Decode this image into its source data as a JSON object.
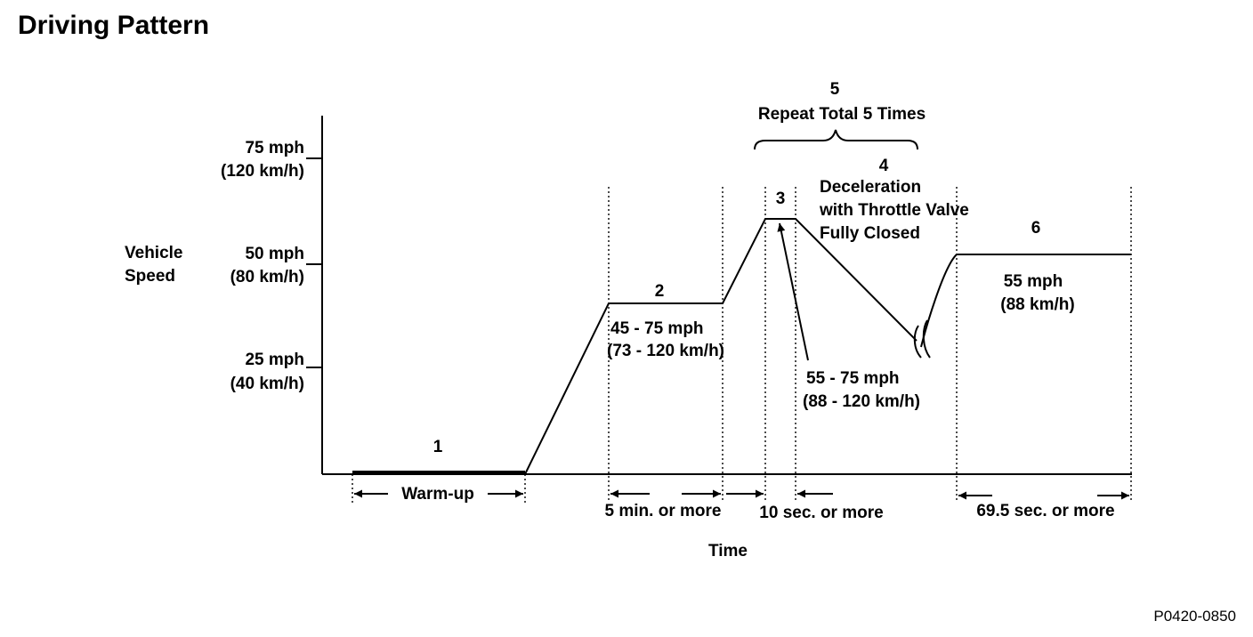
{
  "title": "Driving Pattern",
  "figure_code": "P0420-0850",
  "y_axis": {
    "label_line1": "Vehicle",
    "label_line2": "Speed",
    "ticks": [
      {
        "mph": "75 mph",
        "kmh": "(120 km/h)"
      },
      {
        "mph": "50 mph",
        "kmh": "(80 km/h)"
      },
      {
        "mph": "25 mph",
        "kmh": "(40 km/h)"
      }
    ]
  },
  "x_axis": {
    "label": "Time"
  },
  "steps": {
    "s1": {
      "num": "1"
    },
    "s2": {
      "num": "2",
      "speed": "45 - 75 mph",
      "kmh": "(73 - 120 km/h)"
    },
    "s3": {
      "num": "3",
      "speed": "55 - 75 mph",
      "kmh": "(88 - 120 km/h)"
    },
    "s4": {
      "num": "4",
      "line1": "Deceleration",
      "line2": "with Throttle Valve",
      "line3": "Fully Closed"
    },
    "s5": {
      "num": "5",
      "label": "Repeat Total 5 Times"
    },
    "s6": {
      "num": "6",
      "speed": "55 mph",
      "kmh": "(88 km/h)"
    }
  },
  "durations": {
    "warmup": "Warm-up",
    "five_min": "5 min. or more",
    "ten_sec": "10 sec. or more",
    "sixty_nine": "69.5 sec. or more"
  }
}
